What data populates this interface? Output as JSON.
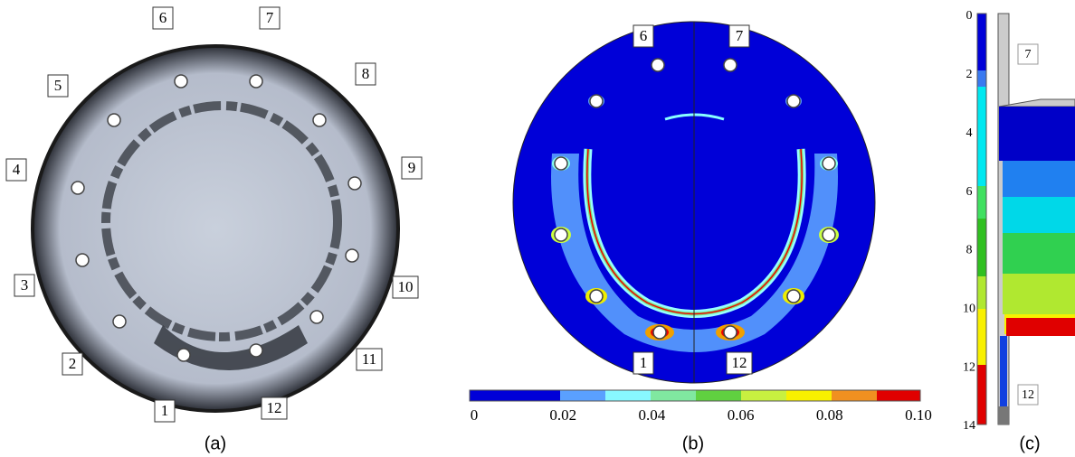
{
  "panel_a": {
    "bolt_labels": [
      "1",
      "2",
      "3",
      "4",
      "5",
      "6",
      "7",
      "8",
      "9",
      "10",
      "11",
      "12"
    ],
    "caption": "(a)"
  },
  "panel_b": {
    "bolt_labels": [
      "6",
      "7",
      "1",
      "12"
    ],
    "colorbar_ticks": [
      "0",
      "0.02",
      "0.04",
      "0.06",
      "0.08",
      "0.10"
    ],
    "caption": "(b)"
  },
  "panel_c": {
    "scale_ticks": [
      "0",
      "2",
      "4",
      "6",
      "8",
      "10",
      "12",
      "14"
    ],
    "bolt_labels": [
      "7",
      "12"
    ],
    "caption": "(c)"
  }
}
